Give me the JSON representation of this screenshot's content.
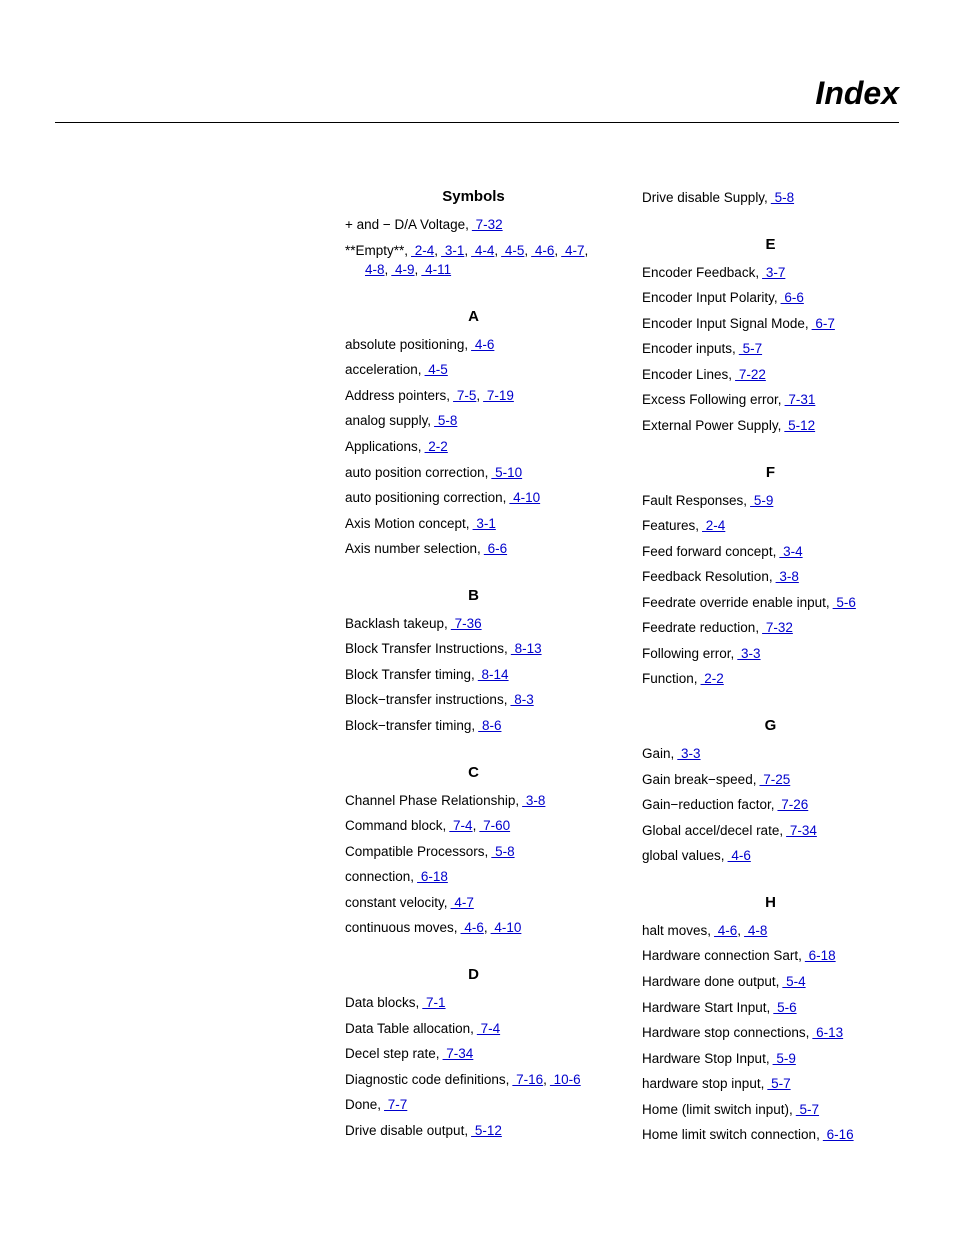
{
  "page_title": "Index",
  "colors": {
    "link": "#0000cc",
    "text": "#000000",
    "background": "#ffffff"
  },
  "left_column": [
    {
      "heading": "Symbols",
      "first": true,
      "entries": [
        {
          "text": "+ and − D/A Voltage,",
          "refs": [
            "7-32"
          ]
        },
        {
          "text": "**Empty**,",
          "refs": [
            "2-4",
            "3-1",
            "4-4",
            "4-5",
            "4-6",
            "4-7",
            "4-8",
            "4-9",
            "4-11"
          ]
        }
      ]
    },
    {
      "heading": "A",
      "entries": [
        {
          "text": "absolute positioning,",
          "refs": [
            "4-6"
          ]
        },
        {
          "text": "acceleration,",
          "refs": [
            "4-5"
          ]
        },
        {
          "text": "Address pointers,",
          "refs": [
            "7-5",
            "7-19"
          ]
        },
        {
          "text": "analog supply,",
          "refs": [
            "5-8"
          ]
        },
        {
          "text": "Applications,",
          "refs": [
            "2-2"
          ]
        },
        {
          "text": "auto position correction,",
          "refs": [
            "5-10"
          ]
        },
        {
          "text": "auto positioning correction,",
          "refs": [
            "4-10"
          ]
        },
        {
          "text": "Axis Motion concept,",
          "refs": [
            "3-1"
          ]
        },
        {
          "text": "Axis number selection,",
          "refs": [
            "6-6"
          ]
        }
      ]
    },
    {
      "heading": "B",
      "entries": [
        {
          "text": "Backlash takeup,",
          "refs": [
            "7-36"
          ]
        },
        {
          "text": "Block Transfer Instructions,",
          "refs": [
            "8-13"
          ]
        },
        {
          "text": "Block Transfer timing,",
          "refs": [
            "8-14"
          ]
        },
        {
          "text": "Block−transfer instructions,",
          "refs": [
            "8-3"
          ]
        },
        {
          "text": "Block−transfer timing,",
          "refs": [
            "8-6"
          ]
        }
      ]
    },
    {
      "heading": "C",
      "entries": [
        {
          "text": "Channel Phase Relationship,",
          "refs": [
            "3-8"
          ]
        },
        {
          "text": "Command block,",
          "refs": [
            "7-4",
            "7-60"
          ]
        },
        {
          "text": "Compatible Processors,",
          "refs": [
            "5-8"
          ]
        },
        {
          "text": "connection,",
          "refs": [
            "6-18"
          ]
        },
        {
          "text": "constant velocity,",
          "refs": [
            "4-7"
          ]
        },
        {
          "text": "continuous moves,",
          "refs": [
            "4-6",
            "4-10"
          ]
        }
      ]
    },
    {
      "heading": "D",
      "entries": [
        {
          "text": "Data blocks,",
          "refs": [
            "7-1"
          ]
        },
        {
          "text": "Data Table allocation,",
          "refs": [
            "7-4"
          ]
        },
        {
          "text": "Decel step rate,",
          "refs": [
            "7-34"
          ]
        },
        {
          "text": "Diagnostic code definitions,",
          "refs": [
            "7-16",
            "10-6"
          ]
        },
        {
          "text": "Done,",
          "refs": [
            "7-7"
          ]
        },
        {
          "text": "Drive disable output,",
          "refs": [
            "5-12"
          ]
        }
      ]
    }
  ],
  "right_column": [
    {
      "heading": null,
      "first": true,
      "entries": [
        {
          "text": "Drive disable Supply,",
          "refs": [
            "5-8"
          ]
        }
      ]
    },
    {
      "heading": "E",
      "entries": [
        {
          "text": "Encoder Feedback,",
          "refs": [
            "3-7"
          ]
        },
        {
          "text": "Encoder Input Polarity,",
          "refs": [
            "6-6"
          ]
        },
        {
          "text": "Encoder Input Signal Mode,",
          "refs": [
            "6-7"
          ]
        },
        {
          "text": "Encoder inputs,",
          "refs": [
            "5-7"
          ]
        },
        {
          "text": "Encoder Lines,",
          "refs": [
            "7-22"
          ]
        },
        {
          "text": "Excess Following error,",
          "refs": [
            "7-31"
          ]
        },
        {
          "text": "External Power Supply,",
          "refs": [
            "5-12"
          ]
        }
      ]
    },
    {
      "heading": "F",
      "entries": [
        {
          "text": "Fault Responses,",
          "refs": [
            "5-9"
          ]
        },
        {
          "text": "Features,",
          "refs": [
            "2-4"
          ]
        },
        {
          "text": "Feed forward concept,",
          "refs": [
            "3-4"
          ]
        },
        {
          "text": "Feedback Resolution,",
          "refs": [
            "3-8"
          ]
        },
        {
          "text": "Feedrate override enable input,",
          "refs": [
            "5-6"
          ]
        },
        {
          "text": "Feedrate reduction,",
          "refs": [
            "7-32"
          ]
        },
        {
          "text": "Following error,",
          "refs": [
            "3-3"
          ]
        },
        {
          "text": "Function,",
          "refs": [
            "2-2"
          ]
        }
      ]
    },
    {
      "heading": "G",
      "entries": [
        {
          "text": "Gain,",
          "refs": [
            "3-3"
          ]
        },
        {
          "text": "Gain break−speed,",
          "refs": [
            "7-25"
          ]
        },
        {
          "text": "Gain−reduction factor,",
          "refs": [
            "7-26"
          ]
        },
        {
          "text": "Global accel/decel rate,",
          "refs": [
            "7-34"
          ]
        },
        {
          "text": "global values,",
          "refs": [
            "4-6"
          ]
        }
      ]
    },
    {
      "heading": "H",
      "entries": [
        {
          "text": "halt moves,",
          "refs": [
            "4-6",
            "4-8"
          ]
        },
        {
          "text": "Hardware connection Sart,",
          "refs": [
            "6-18"
          ]
        },
        {
          "text": "Hardware done output,",
          "refs": [
            "5-4"
          ]
        },
        {
          "text": "Hardware Start Input,",
          "refs": [
            "5-6"
          ]
        },
        {
          "text": "Hardware stop connections,",
          "refs": [
            "6-13"
          ]
        },
        {
          "text": "Hardware Stop Input,",
          "refs": [
            "5-9"
          ]
        },
        {
          "text": "hardware stop input,",
          "refs": [
            "5-7"
          ]
        },
        {
          "text": "Home (limit switch input),",
          "refs": [
            "5-7"
          ]
        },
        {
          "text": "Home limit switch connection,",
          "refs": [
            "6-16"
          ]
        }
      ]
    }
  ]
}
